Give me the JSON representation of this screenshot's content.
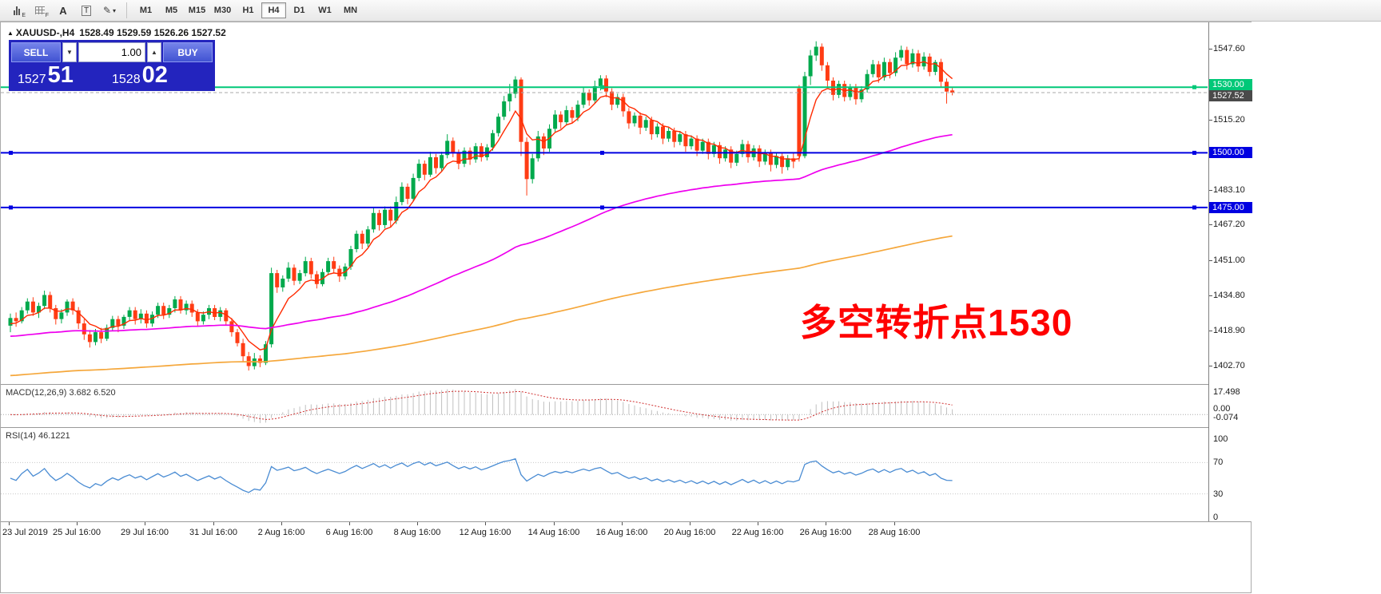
{
  "toolbar": {
    "tools": [
      {
        "name": "bar-chart",
        "sub": "E"
      },
      {
        "name": "grid",
        "sub": "F"
      },
      {
        "name": "text-cursor",
        "glyph": "A"
      },
      {
        "name": "label-tool",
        "glyph": "T"
      },
      {
        "name": "draw-tool",
        "glyph": "✎"
      }
    ],
    "timeframes": [
      "M1",
      "M5",
      "M15",
      "M30",
      "H1",
      "H4",
      "D1",
      "W1",
      "MN"
    ],
    "active_timeframe": "H4"
  },
  "chart": {
    "title": "XAUUSD-,H4",
    "ohlc_display": "1528.49 1529.59 1526.26 1527.52"
  },
  "one_click": {
    "sell_label": "SELL",
    "buy_label": "BUY",
    "volume": "1.00",
    "sell_price_main": "1527",
    "sell_price_pips": "51",
    "buy_price_main": "1528",
    "buy_price_pips": "02"
  },
  "annotation": {
    "text": "多空转折点1530",
    "color": "#FF0000"
  },
  "price_axis": {
    "labels": [
      {
        "text": "1547.60",
        "price": 1547.6
      },
      {
        "text": "1515.20",
        "price": 1515.2
      },
      {
        "text": "1483.10",
        "price": 1483.1
      },
      {
        "text": "1467.20",
        "price": 1467.2
      },
      {
        "text": "1451.00",
        "price": 1451.0
      },
      {
        "text": "1434.80",
        "price": 1434.8
      },
      {
        "text": "1418.90",
        "price": 1418.9
      },
      {
        "text": "1402.70",
        "price": 1402.7
      }
    ],
    "tags": [
      {
        "text": "1530.00",
        "price": 1530.0,
        "color": "#00C878",
        "dy": -3
      },
      {
        "text": "1527.52",
        "price": 1527.52,
        "color": "#4A4A4A",
        "dy": 4
      },
      {
        "text": "1500.00",
        "price": 1500.0,
        "color": "#0000E1",
        "dy": 0
      },
      {
        "text": "1475.00",
        "price": 1475.0,
        "color": "#0000E1",
        "dy": 0
      }
    ]
  },
  "time_axis": {
    "labels": [
      "23 Jul 2019",
      "25 Jul 16:00",
      "29 Jul 16:00",
      "31 Jul 16:00",
      "2 Aug 16:00",
      "6 Aug 16:00",
      "8 Aug 16:00",
      "12 Aug 16:00",
      "14 Aug 16:00",
      "16 Aug 16:00",
      "20 Aug 16:00",
      "22 Aug 16:00",
      "26 Aug 16:00",
      "28 Aug 16:00"
    ]
  },
  "macd_panel": {
    "title": "MACD(12,26,9)",
    "values": "3.682 6.520",
    "axis_labels": [
      "17.498",
      "0.00",
      "-0.074"
    ]
  },
  "rsi_panel": {
    "title": "RSI(14)",
    "value": "46.1221",
    "axis_labels": [
      "100",
      "70",
      "30",
      "0"
    ]
  },
  "colors": {
    "bull": "#00A94C",
    "bear": "#FF3C14",
    "ma_fast": "#FF2A00",
    "ma_medium": "#EE00EE",
    "ma_slow": "#F5A73B",
    "macd_hist": "#C0C0C0",
    "macd_signal": "#D03030",
    "rsi_line": "#4A8CD3",
    "level_green": "#00C878",
    "level_blue": "#0000E1"
  },
  "chart_data": {
    "type": "candlestick",
    "symbol": "XAUUSD-",
    "timeframe": "H4",
    "title": "XAUUSD-,H4",
    "last_ohlc": {
      "open": 1528.49,
      "high": 1529.59,
      "low": 1526.26,
      "close": 1527.52
    },
    "ylim": [
      1396,
      1559
    ],
    "y_ticks": [
      1547.6,
      1515.2,
      1483.1,
      1467.2,
      1451.0,
      1434.8,
      1418.9,
      1402.7
    ],
    "x_labels": [
      "23 Jul 2019",
      "25 Jul 16:00",
      "29 Jul 16:00",
      "31 Jul 16:00",
      "2 Aug 16:00",
      "6 Aug 16:00",
      "8 Aug 16:00",
      "12 Aug 16:00",
      "14 Aug 16:00",
      "16 Aug 16:00",
      "20 Aug 16:00",
      "22 Aug 16:00",
      "26 Aug 16:00",
      "28 Aug 16:00"
    ],
    "horizontal_lines": [
      {
        "price": 1530.0,
        "color": "#00C878",
        "width": 2,
        "handles": true
      },
      {
        "price": 1500.0,
        "color": "#0000E1",
        "width": 2,
        "handles": true
      },
      {
        "price": 1475.0,
        "color": "#0000E1",
        "width": 2,
        "handles": true
      }
    ],
    "current_price_line": {
      "price": 1527.52,
      "color": "#A8A8A8"
    },
    "moving_averages": [
      {
        "name": "fast",
        "period": 7,
        "seed": 1421,
        "color": "#FF2A00",
        "width": 1.4
      },
      {
        "name": "medium",
        "period": 100,
        "seed": 1416,
        "color": "#EE00EE",
        "width": 1.7
      },
      {
        "name": "slow",
        "period": 300,
        "seed": 1398,
        "color": "#F5A73B",
        "width": 1.7
      }
    ],
    "indicators": [
      {
        "type": "MACD",
        "params": [
          12,
          26,
          9
        ],
        "display_values": [
          3.682,
          6.52
        ]
      },
      {
        "type": "RSI",
        "params": [
          14
        ],
        "display_value": 46.1221
      }
    ],
    "candles": [
      [
        1421.0,
        1426.5,
        1418.0,
        1424.5
      ],
      [
        1424.5,
        1427.0,
        1420.5,
        1423.0
      ],
      [
        1423.0,
        1429.5,
        1422.0,
        1428.0
      ],
      [
        1428.0,
        1433.5,
        1426.5,
        1432.0
      ],
      [
        1432.0,
        1434.0,
        1425.5,
        1427.0
      ],
      [
        1427.0,
        1431.5,
        1424.5,
        1430.0
      ],
      [
        1430.0,
        1437.0,
        1428.5,
        1435.0
      ],
      [
        1435.0,
        1436.5,
        1427.0,
        1429.0
      ],
      [
        1429.0,
        1430.5,
        1421.5,
        1424.0
      ],
      [
        1424.0,
        1428.5,
        1422.0,
        1427.0
      ],
      [
        1427.0,
        1433.0,
        1425.5,
        1432.0
      ],
      [
        1432.0,
        1433.5,
        1426.0,
        1428.0
      ],
      [
        1428.0,
        1429.5,
        1419.5,
        1422.0
      ],
      [
        1422.0,
        1424.0,
        1414.5,
        1417.0
      ],
      [
        1417.0,
        1419.0,
        1411.0,
        1413.5
      ],
      [
        1413.5,
        1419.5,
        1412.0,
        1418.0
      ],
      [
        1418.0,
        1420.0,
        1413.0,
        1415.0
      ],
      [
        1415.0,
        1421.5,
        1414.0,
        1420.0
      ],
      [
        1420.0,
        1425.5,
        1418.5,
        1424.0
      ],
      [
        1424.0,
        1425.5,
        1418.0,
        1421.0
      ],
      [
        1421.0,
        1426.0,
        1419.5,
        1425.0
      ],
      [
        1425.0,
        1429.5,
        1423.0,
        1428.0
      ],
      [
        1428.0,
        1429.5,
        1421.5,
        1424.0
      ],
      [
        1424.0,
        1428.5,
        1422.0,
        1426.5
      ],
      [
        1426.5,
        1428.0,
        1420.0,
        1422.0
      ],
      [
        1422.0,
        1427.5,
        1420.5,
        1426.0
      ],
      [
        1426.0,
        1431.5,
        1424.5,
        1430.0
      ],
      [
        1430.0,
        1431.5,
        1424.0,
        1426.0
      ],
      [
        1426.0,
        1430.5,
        1424.5,
        1429.0
      ],
      [
        1429.0,
        1434.5,
        1427.0,
        1433.0
      ],
      [
        1433.0,
        1434.5,
        1426.5,
        1428.0
      ],
      [
        1428.0,
        1432.5,
        1426.0,
        1431.0
      ],
      [
        1431.0,
        1432.5,
        1425.0,
        1427.0
      ],
      [
        1427.0,
        1428.5,
        1421.0,
        1423.0
      ],
      [
        1423.0,
        1427.5,
        1421.5,
        1426.0
      ],
      [
        1426.0,
        1430.5,
        1424.0,
        1429.0
      ],
      [
        1429.0,
        1430.5,
        1423.5,
        1425.0
      ],
      [
        1425.0,
        1429.5,
        1423.0,
        1428.0
      ],
      [
        1428.0,
        1429.0,
        1421.0,
        1423.0
      ],
      [
        1423.0,
        1424.5,
        1416.0,
        1418.0
      ],
      [
        1418.0,
        1419.5,
        1411.5,
        1413.0
      ],
      [
        1413.0,
        1415.0,
        1404.5,
        1407.0
      ],
      [
        1407.0,
        1409.0,
        1400.5,
        1402.5
      ],
      [
        1402.5,
        1408.5,
        1401.0,
        1406.0
      ],
      [
        1406.0,
        1407.5,
        1402.0,
        1404.0
      ],
      [
        1404.0,
        1414.0,
        1403.0,
        1412.5
      ],
      [
        1412.5,
        1447.5,
        1411.0,
        1445.0
      ],
      [
        1445.0,
        1446.5,
        1436.0,
        1438.5
      ],
      [
        1438.5,
        1444.0,
        1436.5,
        1442.5
      ],
      [
        1442.5,
        1450.0,
        1441.0,
        1447.5
      ],
      [
        1447.5,
        1449.0,
        1439.5,
        1441.5
      ],
      [
        1441.5,
        1446.5,
        1440.0,
        1445.0
      ],
      [
        1445.0,
        1452.5,
        1443.5,
        1450.5
      ],
      [
        1450.5,
        1452.0,
        1442.5,
        1444.5
      ],
      [
        1444.5,
        1446.0,
        1438.0,
        1440.0
      ],
      [
        1440.0,
        1447.0,
        1439.0,
        1445.5
      ],
      [
        1445.5,
        1452.0,
        1444.0,
        1450.5
      ],
      [
        1450.5,
        1452.5,
        1445.0,
        1447.0
      ],
      [
        1447.0,
        1448.5,
        1441.0,
        1443.5
      ],
      [
        1443.5,
        1449.5,
        1442.0,
        1448.0
      ],
      [
        1448.0,
        1457.5,
        1446.5,
        1456.0
      ],
      [
        1456.0,
        1464.5,
        1454.5,
        1463.0
      ],
      [
        1463.0,
        1464.5,
        1456.0,
        1458.5
      ],
      [
        1458.5,
        1466.5,
        1457.0,
        1465.0
      ],
      [
        1465.0,
        1475.0,
        1463.5,
        1472.5
      ],
      [
        1472.5,
        1474.0,
        1464.5,
        1467.0
      ],
      [
        1467.0,
        1475.5,
        1465.5,
        1474.0
      ],
      [
        1474.0,
        1475.5,
        1466.0,
        1469.0
      ],
      [
        1469.0,
        1480.0,
        1467.5,
        1477.5
      ],
      [
        1477.5,
        1486.5,
        1476.0,
        1484.5
      ],
      [
        1484.5,
        1486.0,
        1476.5,
        1479.0
      ],
      [
        1479.0,
        1490.5,
        1478.0,
        1488.5
      ],
      [
        1488.5,
        1497.0,
        1487.0,
        1495.0
      ],
      [
        1495.0,
        1496.5,
        1487.5,
        1490.0
      ],
      [
        1490.0,
        1500.5,
        1489.0,
        1498.0
      ],
      [
        1498.0,
        1499.5,
        1490.5,
        1493.0
      ],
      [
        1493.0,
        1500.5,
        1491.5,
        1499.0
      ],
      [
        1499.0,
        1508.5,
        1497.5,
        1505.5
      ],
      [
        1505.5,
        1507.0,
        1498.0,
        1500.0
      ],
      [
        1500.0,
        1501.5,
        1492.5,
        1495.0
      ],
      [
        1495.0,
        1502.5,
        1493.5,
        1501.0
      ],
      [
        1501.0,
        1502.5,
        1494.5,
        1497.0
      ],
      [
        1497.0,
        1504.5,
        1495.5,
        1503.0
      ],
      [
        1503.0,
        1504.5,
        1496.0,
        1498.0
      ],
      [
        1498.0,
        1504.0,
        1496.5,
        1502.5
      ],
      [
        1502.5,
        1510.5,
        1501.0,
        1509.0
      ],
      [
        1509.0,
        1518.0,
        1507.5,
        1516.5
      ],
      [
        1516.5,
        1526.0,
        1515.0,
        1523.5
      ],
      [
        1523.5,
        1531.5,
        1519.0,
        1527.0
      ],
      [
        1527.0,
        1535.0,
        1525.0,
        1533.5
      ],
      [
        1533.5,
        1534.5,
        1498.5,
        1505.0
      ],
      [
        1505.0,
        1507.0,
        1480.5,
        1488.0
      ],
      [
        1488.0,
        1499.5,
        1486.0,
        1497.5
      ],
      [
        1497.5,
        1510.0,
        1496.0,
        1507.5
      ],
      [
        1507.5,
        1509.0,
        1499.0,
        1502.0
      ],
      [
        1502.0,
        1513.0,
        1500.5,
        1511.0
      ],
      [
        1511.0,
        1519.5,
        1509.5,
        1517.5
      ],
      [
        1517.5,
        1519.0,
        1511.0,
        1514.0
      ],
      [
        1514.0,
        1521.5,
        1512.5,
        1519.5
      ],
      [
        1519.5,
        1521.0,
        1513.5,
        1516.0
      ],
      [
        1516.0,
        1524.0,
        1514.5,
        1522.0
      ],
      [
        1522.0,
        1530.0,
        1520.5,
        1527.5
      ],
      [
        1527.5,
        1529.0,
        1521.5,
        1524.0
      ],
      [
        1524.0,
        1533.0,
        1522.5,
        1530.5
      ],
      [
        1530.5,
        1535.5,
        1528.5,
        1534.0
      ],
      [
        1534.0,
        1535.5,
        1525.5,
        1528.0
      ],
      [
        1528.0,
        1529.5,
        1519.5,
        1522.0
      ],
      [
        1522.0,
        1527.0,
        1520.5,
        1525.5
      ],
      [
        1525.5,
        1527.0,
        1516.5,
        1519.0
      ],
      [
        1519.0,
        1520.5,
        1511.0,
        1513.5
      ],
      [
        1513.5,
        1518.5,
        1512.0,
        1517.0
      ],
      [
        1517.0,
        1518.5,
        1508.5,
        1511.5
      ],
      [
        1511.5,
        1516.5,
        1510.0,
        1515.0
      ],
      [
        1515.0,
        1516.5,
        1506.0,
        1508.5
      ],
      [
        1508.5,
        1513.5,
        1507.0,
        1512.0
      ],
      [
        1512.0,
        1513.5,
        1504.0,
        1506.5
      ],
      [
        1506.5,
        1511.5,
        1505.0,
        1510.0
      ],
      [
        1510.0,
        1511.5,
        1502.5,
        1505.0
      ],
      [
        1505.0,
        1510.0,
        1503.5,
        1508.5
      ],
      [
        1508.5,
        1510.0,
        1500.5,
        1503.0
      ],
      [
        1503.0,
        1508.0,
        1501.5,
        1506.5
      ],
      [
        1506.5,
        1508.0,
        1498.5,
        1501.0
      ],
      [
        1501.0,
        1506.5,
        1499.5,
        1505.0
      ],
      [
        1505.0,
        1506.5,
        1497.0,
        1499.5
      ],
      [
        1499.5,
        1505.0,
        1498.0,
        1503.5
      ],
      [
        1503.5,
        1505.0,
        1495.0,
        1497.5
      ],
      [
        1497.5,
        1503.0,
        1496.0,
        1501.5
      ],
      [
        1501.5,
        1503.0,
        1493.0,
        1495.5
      ],
      [
        1495.5,
        1501.0,
        1494.0,
        1499.5
      ],
      [
        1499.5,
        1506.0,
        1498.0,
        1504.0
      ],
      [
        1504.0,
        1505.5,
        1495.5,
        1498.0
      ],
      [
        1498.0,
        1503.5,
        1496.5,
        1502.0
      ],
      [
        1502.0,
        1503.5,
        1493.5,
        1496.0
      ],
      [
        1496.0,
        1501.5,
        1494.5,
        1500.0
      ],
      [
        1500.0,
        1501.5,
        1491.5,
        1494.5
      ],
      [
        1494.5,
        1500.0,
        1493.0,
        1498.5
      ],
      [
        1498.5,
        1500.0,
        1490.5,
        1493.5
      ],
      [
        1493.5,
        1499.0,
        1492.0,
        1497.5
      ],
      [
        1497.5,
        1500.0,
        1493.0,
        1496.0
      ],
      [
        1529.5,
        1531.0,
        1496.0,
        1498.5
      ],
      [
        1498.5,
        1537.0,
        1497.5,
        1535.0
      ],
      [
        1535.0,
        1547.0,
        1531.0,
        1544.5
      ],
      [
        1544.5,
        1551.0,
        1542.0,
        1548.5
      ],
      [
        1548.5,
        1550.0,
        1537.5,
        1540.0
      ],
      [
        1540.0,
        1541.5,
        1530.0,
        1533.0
      ],
      [
        1533.0,
        1534.5,
        1524.0,
        1526.5
      ],
      [
        1526.5,
        1533.0,
        1525.0,
        1531.5
      ],
      [
        1531.5,
        1533.0,
        1523.5,
        1525.5
      ],
      [
        1525.5,
        1531.5,
        1524.0,
        1530.0
      ],
      [
        1530.0,
        1531.5,
        1522.0,
        1524.5
      ],
      [
        1524.5,
        1530.5,
        1523.0,
        1529.0
      ],
      [
        1529.0,
        1538.0,
        1527.5,
        1536.0
      ],
      [
        1536.0,
        1542.5,
        1534.5,
        1540.5
      ],
      [
        1540.5,
        1542.0,
        1532.0,
        1534.5
      ],
      [
        1534.5,
        1543.5,
        1533.0,
        1541.5
      ],
      [
        1541.5,
        1543.0,
        1534.0,
        1536.5
      ],
      [
        1536.5,
        1546.0,
        1535.0,
        1543.5
      ],
      [
        1543.5,
        1549.0,
        1542.0,
        1547.0
      ],
      [
        1547.0,
        1548.5,
        1538.0,
        1540.5
      ],
      [
        1540.5,
        1547.5,
        1539.0,
        1545.5
      ],
      [
        1545.5,
        1547.0,
        1537.0,
        1539.5
      ],
      [
        1539.5,
        1546.0,
        1538.0,
        1544.0
      ],
      [
        1544.0,
        1545.5,
        1535.0,
        1537.0
      ],
      [
        1537.0,
        1542.5,
        1535.5,
        1541.5
      ],
      [
        1541.5,
        1543.0,
        1530.0,
        1532.5
      ],
      [
        1532.5,
        1534.0,
        1522.5,
        1528.0
      ],
      [
        1528.5,
        1529.6,
        1526.3,
        1527.5
      ]
    ]
  }
}
